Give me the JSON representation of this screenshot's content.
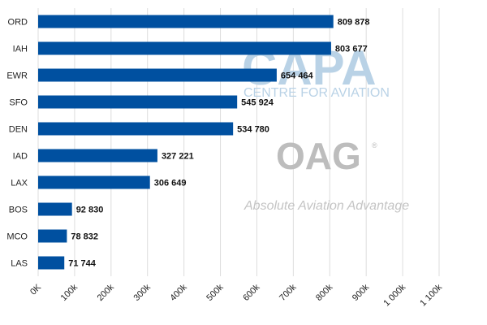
{
  "watermark": {
    "capa": "CAPA",
    "capa_sub": "CENTRE FOR AVIATION",
    "oag": "OAG",
    "oag_mark": "®",
    "oag_sub": "Absolute Aviation Advantage"
  },
  "chart_data": {
    "type": "bar",
    "orientation": "horizontal",
    "title": "",
    "xlabel": "",
    "ylabel": "",
    "categories": [
      "ORD",
      "IAH",
      "EWR",
      "SFO",
      "DEN",
      "IAD",
      "LAX",
      "BOS",
      "MCO",
      "LAS"
    ],
    "values": [
      809878,
      803677,
      654464,
      545924,
      534780,
      327221,
      306649,
      92830,
      78832,
      71744
    ],
    "value_labels": [
      "809 878",
      "803 677",
      "654 464",
      "545 924",
      "534 780",
      "327 221",
      "306 649",
      "92 830",
      "78 832",
      "71 744"
    ],
    "xlim": [
      0,
      1100000
    ],
    "x_ticks": [
      0,
      100000,
      200000,
      300000,
      400000,
      500000,
      600000,
      700000,
      800000,
      900000,
      1000000,
      1100000
    ],
    "x_tick_labels": [
      "0K",
      "100k",
      "200k",
      "300k",
      "400k",
      "500k",
      "600k",
      "700k",
      "800k",
      "900k",
      "1 000k",
      "1 100k"
    ],
    "grid": true,
    "bar_color": "#0050a0",
    "grid_color": "#dddddd"
  }
}
